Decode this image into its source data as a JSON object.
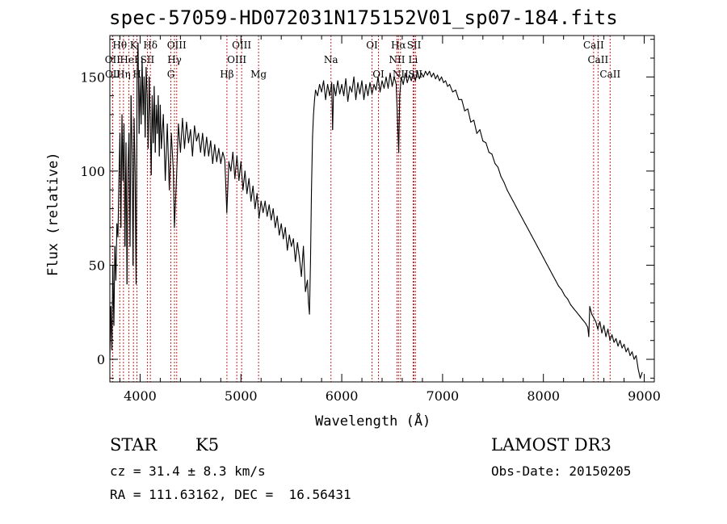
{
  "chart_data": {
    "type": "line",
    "title": "spec-57059-HD072031N175152V01_sp07-184.fits",
    "xlabel": "Wavelength (Å)",
    "ylabel": "Flux (relative)",
    "xlim": [
      3700,
      9100
    ],
    "ylim": [
      -12,
      172
    ],
    "xticks": [
      4000,
      5000,
      6000,
      7000,
      8000,
      9000
    ],
    "yticks": [
      0,
      50,
      100,
      150
    ],
    "series": [
      {
        "name": "flux",
        "points": [
          [
            3700,
            0
          ],
          [
            3710,
            28
          ],
          [
            3720,
            5
          ],
          [
            3730,
            50
          ],
          [
            3740,
            18
          ],
          [
            3750,
            60
          ],
          [
            3760,
            42
          ],
          [
            3770,
            72
          ],
          [
            3780,
            65
          ],
          [
            3790,
            95
          ],
          [
            3800,
            120
          ],
          [
            3810,
            70
          ],
          [
            3820,
            130
          ],
          [
            3830,
            95
          ],
          [
            3840,
            125
          ],
          [
            3850,
            60
          ],
          [
            3860,
            115
          ],
          [
            3870,
            40
          ],
          [
            3880,
            102
          ],
          [
            3890,
            120
          ],
          [
            3900,
            60
          ],
          [
            3910,
            140
          ],
          [
            3920,
            110
          ],
          [
            3930,
            50
          ],
          [
            3940,
            128
          ],
          [
            3950,
            100
          ],
          [
            3960,
            40
          ],
          [
            3970,
            150
          ],
          [
            3980,
            168
          ],
          [
            3990,
            120
          ],
          [
            4000,
            150
          ],
          [
            4010,
            125
          ],
          [
            4020,
            160
          ],
          [
            4030,
            130
          ],
          [
            4040,
            150
          ],
          [
            4050,
            118
          ],
          [
            4060,
            155
          ],
          [
            4070,
            140
          ],
          [
            4080,
            112
          ],
          [
            4090,
            150
          ],
          [
            4100,
            128
          ],
          [
            4110,
            98
          ],
          [
            4120,
            140
          ],
          [
            4130,
            115
          ],
          [
            4140,
            145
          ],
          [
            4150,
            110
          ],
          [
            4160,
            135
          ],
          [
            4170,
            120
          ],
          [
            4180,
            140
          ],
          [
            4190,
            108
          ],
          [
            4200,
            135
          ],
          [
            4210,
            112
          ],
          [
            4230,
            130
          ],
          [
            4250,
            95
          ],
          [
            4270,
            125
          ],
          [
            4290,
            90
          ],
          [
            4310,
            120
          ],
          [
            4330,
            100
          ],
          [
            4340,
            70
          ],
          [
            4360,
            95
          ],
          [
            4380,
            125
          ],
          [
            4400,
            110
          ],
          [
            4420,
            128
          ],
          [
            4440,
            112
          ],
          [
            4460,
            126
          ],
          [
            4480,
            115
          ],
          [
            4500,
            122
          ],
          [
            4520,
            108
          ],
          [
            4540,
            124
          ],
          [
            4560,
            116
          ],
          [
            4580,
            120
          ],
          [
            4600,
            110
          ],
          [
            4620,
            120
          ],
          [
            4640,
            108
          ],
          [
            4660,
            118
          ],
          [
            4680,
            108
          ],
          [
            4700,
            116
          ],
          [
            4720,
            104
          ],
          [
            4740,
            114
          ],
          [
            4760,
            105
          ],
          [
            4780,
            112
          ],
          [
            4800,
            104
          ],
          [
            4820,
            110
          ],
          [
            4840,
            106
          ],
          [
            4860,
            78
          ],
          [
            4880,
            105
          ],
          [
            4900,
            100
          ],
          [
            4920,
            110
          ],
          [
            4940,
            96
          ],
          [
            4960,
            108
          ],
          [
            4980,
            95
          ],
          [
            5000,
            105
          ],
          [
            5020,
            90
          ],
          [
            5040,
            100
          ],
          [
            5060,
            88
          ],
          [
            5080,
            96
          ],
          [
            5100,
            84
          ],
          [
            5120,
            92
          ],
          [
            5140,
            80
          ],
          [
            5160,
            88
          ],
          [
            5180,
            75
          ],
          [
            5200,
            84
          ],
          [
            5220,
            78
          ],
          [
            5240,
            84
          ],
          [
            5260,
            76
          ],
          [
            5280,
            82
          ],
          [
            5300,
            74
          ],
          [
            5320,
            80
          ],
          [
            5340,
            70
          ],
          [
            5360,
            76
          ],
          [
            5380,
            66
          ],
          [
            5400,
            72
          ],
          [
            5420,
            64
          ],
          [
            5440,
            70
          ],
          [
            5460,
            58
          ],
          [
            5480,
            66
          ],
          [
            5500,
            60
          ],
          [
            5520,
            64
          ],
          [
            5540,
            52
          ],
          [
            5560,
            62
          ],
          [
            5580,
            54
          ],
          [
            5600,
            44
          ],
          [
            5620,
            60
          ],
          [
            5640,
            36
          ],
          [
            5660,
            42
          ],
          [
            5670,
            30
          ],
          [
            5680,
            24
          ],
          [
            5690,
            52
          ],
          [
            5700,
            90
          ],
          [
            5710,
            118
          ],
          [
            5720,
            130
          ],
          [
            5730,
            138
          ],
          [
            5740,
            143
          ],
          [
            5760,
            140
          ],
          [
            5780,
            146
          ],
          [
            5800,
            142
          ],
          [
            5820,
            148
          ],
          [
            5840,
            138
          ],
          [
            5860,
            146
          ],
          [
            5880,
            140
          ],
          [
            5900,
            147
          ],
          [
            5910,
            122
          ],
          [
            5920,
            146
          ],
          [
            5940,
            140
          ],
          [
            5960,
            148
          ],
          [
            5980,
            141
          ],
          [
            6000,
            146
          ],
          [
            6020,
            140
          ],
          [
            6040,
            149
          ],
          [
            6060,
            137
          ],
          [
            6080,
            145
          ],
          [
            6100,
            142
          ],
          [
            6120,
            150
          ],
          [
            6140,
            138
          ],
          [
            6160,
            147
          ],
          [
            6180,
            141
          ],
          [
            6200,
            148
          ],
          [
            6220,
            138
          ],
          [
            6240,
            146
          ],
          [
            6260,
            140
          ],
          [
            6280,
            147
          ],
          [
            6300,
            141
          ],
          [
            6320,
            146
          ],
          [
            6340,
            143
          ],
          [
            6360,
            150
          ],
          [
            6380,
            142
          ],
          [
            6400,
            148
          ],
          [
            6420,
            144
          ],
          [
            6440,
            150
          ],
          [
            6460,
            144
          ],
          [
            6480,
            152
          ],
          [
            6500,
            145
          ],
          [
            6520,
            150
          ],
          [
            6540,
            146
          ],
          [
            6555,
            125
          ],
          [
            6565,
            110
          ],
          [
            6575,
            140
          ],
          [
            6590,
            150
          ],
          [
            6610,
            146
          ],
          [
            6630,
            152
          ],
          [
            6650,
            147
          ],
          [
            6670,
            151
          ],
          [
            6690,
            148
          ],
          [
            6710,
            152
          ],
          [
            6730,
            148
          ],
          [
            6750,
            153
          ],
          [
            6770,
            149
          ],
          [
            6790,
            152
          ],
          [
            6810,
            150
          ],
          [
            6830,
            153
          ],
          [
            6850,
            151
          ],
          [
            6870,
            153
          ],
          [
            6890,
            150
          ],
          [
            6910,
            152
          ],
          [
            6930,
            149
          ],
          [
            6950,
            151
          ],
          [
            6970,
            148
          ],
          [
            6990,
            150
          ],
          [
            7010,
            147
          ],
          [
            7030,
            148
          ],
          [
            7050,
            145
          ],
          [
            7070,
            146
          ],
          [
            7100,
            142
          ],
          [
            7130,
            143
          ],
          [
            7160,
            138
          ],
          [
            7190,
            138
          ],
          [
            7220,
            132
          ],
          [
            7250,
            133
          ],
          [
            7280,
            126
          ],
          [
            7310,
            127
          ],
          [
            7340,
            120
          ],
          [
            7370,
            122
          ],
          [
            7400,
            116
          ],
          [
            7430,
            115
          ],
          [
            7460,
            110
          ],
          [
            7490,
            109
          ],
          [
            7520,
            104
          ],
          [
            7550,
            102
          ],
          [
            7580,
            97
          ],
          [
            7610,
            94
          ],
          [
            7640,
            90
          ],
          [
            7670,
            87
          ],
          [
            7700,
            84
          ],
          [
            7730,
            81
          ],
          [
            7760,
            78
          ],
          [
            7790,
            75
          ],
          [
            7820,
            72
          ],
          [
            7850,
            69
          ],
          [
            7880,
            66
          ],
          [
            7910,
            63
          ],
          [
            7940,
            60
          ],
          [
            7970,
            57
          ],
          [
            8000,
            54
          ],
          [
            8030,
            51
          ],
          [
            8060,
            48
          ],
          [
            8090,
            45
          ],
          [
            8120,
            42
          ],
          [
            8150,
            39
          ],
          [
            8180,
            37
          ],
          [
            8210,
            34
          ],
          [
            8240,
            32
          ],
          [
            8270,
            29
          ],
          [
            8300,
            27
          ],
          [
            8330,
            25
          ],
          [
            8360,
            23
          ],
          [
            8390,
            21
          ],
          [
            8420,
            19
          ],
          [
            8440,
            17
          ],
          [
            8450,
            12
          ],
          [
            8460,
            28
          ],
          [
            8480,
            24
          ],
          [
            8500,
            22
          ],
          [
            8520,
            20
          ],
          [
            8540,
            16
          ],
          [
            8560,
            20
          ],
          [
            8580,
            14
          ],
          [
            8600,
            18
          ],
          [
            8620,
            12
          ],
          [
            8640,
            16
          ],
          [
            8660,
            10
          ],
          [
            8680,
            13
          ],
          [
            8700,
            9
          ],
          [
            8720,
            11
          ],
          [
            8740,
            7
          ],
          [
            8760,
            10
          ],
          [
            8780,
            6
          ],
          [
            8800,
            8
          ],
          [
            8820,
            4
          ],
          [
            8840,
            6
          ],
          [
            8860,
            2
          ],
          [
            8880,
            4
          ],
          [
            8900,
            0
          ],
          [
            8920,
            2
          ],
          [
            8940,
            -5
          ],
          [
            8960,
            -10
          ],
          [
            8980,
            -7
          ]
        ]
      }
    ],
    "line_markers": [
      {
        "label": "Hθ",
        "wavelength": 3798,
        "row": 1
      },
      {
        "label": "OII",
        "wavelength": 3727,
        "row": 2
      },
      {
        "label": "OII",
        "wavelength": 3729,
        "row": 3
      },
      {
        "label": "Hη",
        "wavelength": 3835,
        "row": 3
      },
      {
        "label": "K",
        "wavelength": 3934,
        "row": 1
      },
      {
        "label": "HeI",
        "wavelength": 3889,
        "row": 2
      },
      {
        "label": "SII",
        "wavelength": 4072,
        "row": 2
      },
      {
        "label": "H",
        "wavelength": 3969,
        "row": 3
      },
      {
        "label": "Hδ",
        "wavelength": 4102,
        "row": 1
      },
      {
        "label": "OIII",
        "wavelength": 4363,
        "row": 1
      },
      {
        "label": "Hγ",
        "wavelength": 4341,
        "row": 2
      },
      {
        "label": "G",
        "wavelength": 4305,
        "row": 3
      },
      {
        "label": "OIII",
        "wavelength": 5007,
        "row": 1
      },
      {
        "label": "OIII",
        "wavelength": 4959,
        "row": 2
      },
      {
        "label": "Hβ",
        "wavelength": 4861,
        "row": 3
      },
      {
        "label": "Mg",
        "wavelength": 5175,
        "row": 3
      },
      {
        "label": "Na",
        "wavelength": 5893,
        "row": 2
      },
      {
        "label": "OI",
        "wavelength": 6300,
        "row": 1
      },
      {
        "label": "OI",
        "wavelength": 6364,
        "row": 3
      },
      {
        "label": "Hα",
        "wavelength": 6563,
        "row": 1
      },
      {
        "label": "SII",
        "wavelength": 6717,
        "row": 1
      },
      {
        "label": "NII",
        "wavelength": 6548,
        "row": 2
      },
      {
        "label": "Li",
        "wavelength": 6708,
        "row": 2
      },
      {
        "label": "NII",
        "wavelength": 6583,
        "row": 3
      },
      {
        "label": "SII",
        "wavelength": 6731,
        "row": 3
      },
      {
        "label": "CaII",
        "wavelength": 8498,
        "row": 1
      },
      {
        "label": "CaII",
        "wavelength": 8542,
        "row": 2
      },
      {
        "label": "CaII",
        "wavelength": 8662,
        "row": 3
      }
    ]
  },
  "info": {
    "object_class": "STAR",
    "subclass": "K5",
    "redshift_line": "cz = 31.4 ± 8.3 km/s",
    "coords_line": "RA = 111.63162, DEC =  16.56431",
    "survey": "LAMOST DR3",
    "obs_date": "Obs-Date: 20150205"
  },
  "colors": {
    "line": "#000000",
    "marker": "#cc2222",
    "axis": "#000000"
  }
}
